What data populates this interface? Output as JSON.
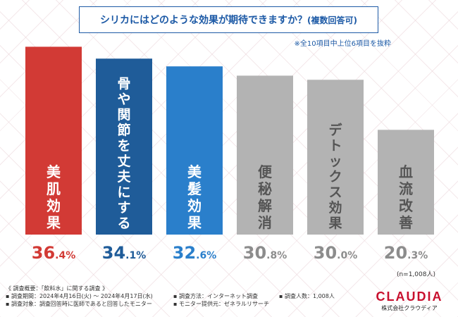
{
  "header": {
    "title": "シリカにはどのような効果が期待できますか？",
    "title_note": "(複数回答可)",
    "subnote": "※全10項目中上位6項目を抜粋"
  },
  "chart_data": {
    "type": "bar",
    "title": "シリカにはどのような効果が期待できますか？(複数回答可)",
    "categories": [
      "美肌効果",
      "骨や関節を丈夫にする",
      "美髪効果",
      "便秘解消",
      "デトックス効果",
      "血流改善"
    ],
    "values": [
      36.4,
      34.1,
      32.6,
      30.8,
      30.0,
      20.3
    ],
    "value_labels": [
      {
        "int": "36",
        "dec": ".4%"
      },
      {
        "int": "34",
        "dec": ".1%"
      },
      {
        "int": "32",
        "dec": ".6%"
      },
      {
        "int": "30",
        "dec": ".8%"
      },
      {
        "int": "30",
        "dec": ".0%"
      },
      {
        "int": "20",
        "dec": ".3%"
      }
    ],
    "colors": [
      "#d23a35",
      "#1f5c99",
      "#2a7fcb",
      "#b3b3b3",
      "#b3b3b3",
      "#b3b3b3"
    ],
    "label_colors": [
      "#d23a35",
      "#1f5c99",
      "#2a7fcb",
      "#8c8c8c",
      "#8c8c8c",
      "#8c8c8c"
    ],
    "ylim": [
      0,
      40
    ],
    "xlabel": "",
    "ylabel": ""
  },
  "sample": "(n=1,008人)",
  "footer": {
    "overview": "《 調査概要：「飲料水」に関する調査 》",
    "period": "▪ 調査期間：2024年4月16日(火) ～ 2024年4月17日(水)",
    "method": "▪ 調査方法：インターネット調査",
    "count": "▪ 調査人数：1,008人",
    "target": "▪ 調査対象：調査回答時に医師であると回答したモニター",
    "provider": "▪ モニター提供元：ゼネラルリサーチ"
  },
  "logo": {
    "name": "CLAUDIA",
    "company": "株式会社クラウディア"
  }
}
